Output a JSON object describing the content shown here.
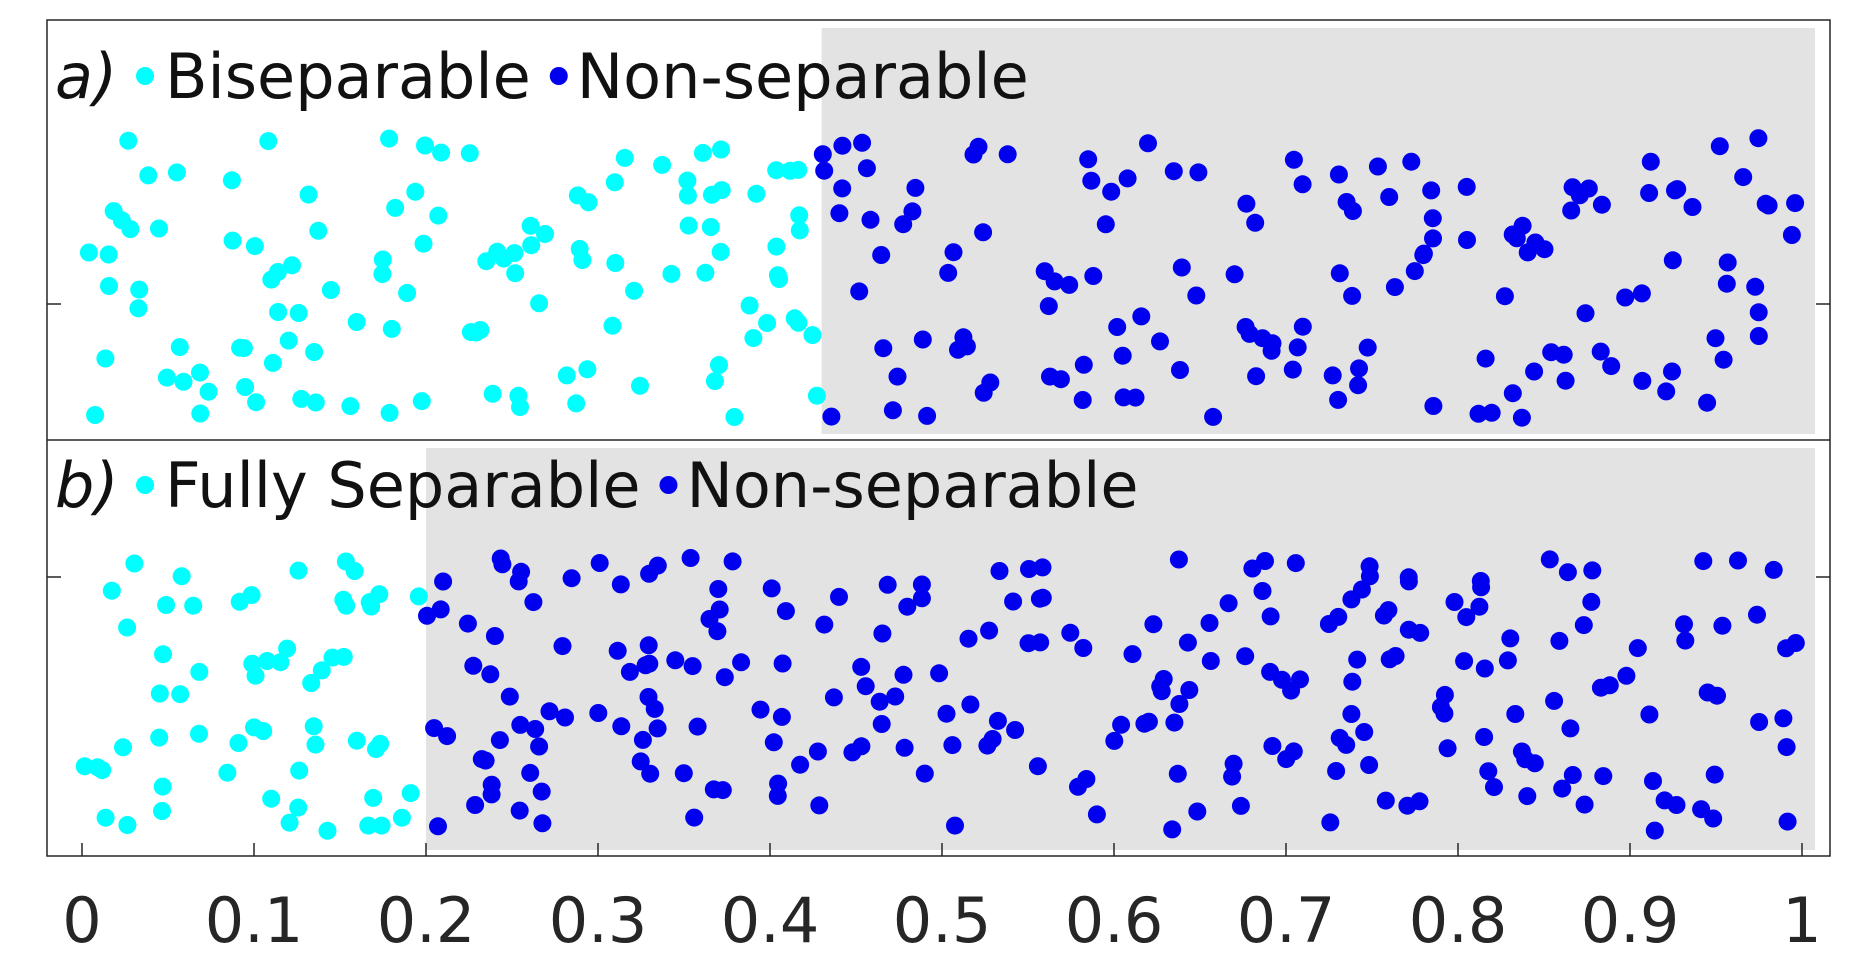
{
  "chart_data": {
    "type": "scatter",
    "xlim": [
      0,
      1
    ],
    "x_ticks": [
      {
        "value": 0,
        "label": "0"
      },
      {
        "value": 0.1,
        "label": "0.1"
      },
      {
        "value": 0.2,
        "label": "0.2"
      },
      {
        "value": 0.3,
        "label": "0.3"
      },
      {
        "value": 0.4,
        "label": "0.4"
      },
      {
        "value": 0.5,
        "label": "0.5"
      },
      {
        "value": 0.6,
        "label": "0.6"
      },
      {
        "value": 0.7,
        "label": "0.7"
      },
      {
        "value": 0.8,
        "label": "0.8"
      },
      {
        "value": 0.9,
        "label": "0.9"
      },
      {
        "value": 1,
        "label": "1"
      }
    ],
    "colors": {
      "separable": "#00ffff",
      "non_separable": "#0000ee",
      "shade": "#e3e3e3",
      "axis": "#262626"
    },
    "panels": [
      {
        "label": "a)",
        "threshold": 0.43,
        "legend": [
          "Biseparable",
          "Non-separable"
        ],
        "point_count": 260,
        "seed": 7
      },
      {
        "label": "b)",
        "threshold": 0.2,
        "legend": [
          "Fully Separable",
          "Non-separable"
        ],
        "point_count": 300,
        "seed": 19
      }
    ]
  }
}
